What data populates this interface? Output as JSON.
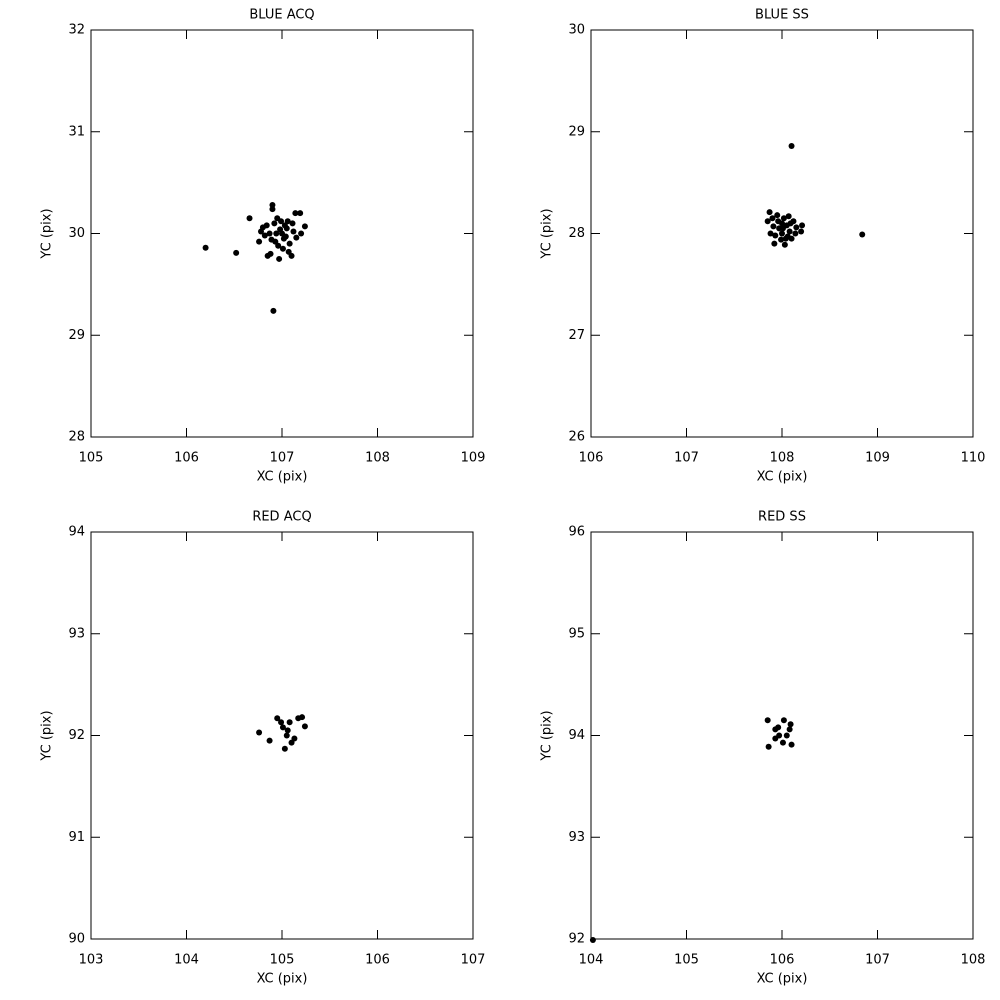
{
  "chart_data": [
    {
      "type": "scatter",
      "title": "BLUE ACQ",
      "xlabel": "XC (pix)",
      "ylabel": "YC (pix)",
      "color": "#000000",
      "x": [
        106.2,
        106.52,
        106.91,
        106.9,
        106.9,
        106.66,
        107.24,
        107.19,
        107.14,
        106.8,
        106.78,
        106.82,
        106.85,
        106.88,
        106.92,
        106.95,
        106.97,
        107.0,
        107.02,
        107.05,
        107.06,
        107.08,
        107.1,
        107.12,
        106.93,
        106.96,
        106.98,
        107.03,
        106.87,
        106.84,
        107.15,
        107.2,
        107.01,
        106.94,
        107.04,
        106.76,
        106.89,
        107.07,
        106.99,
        107.11
      ],
      "y": [
        29.86,
        29.81,
        29.24,
        30.28,
        30.24,
        30.15,
        30.07,
        30.2,
        30.2,
        30.06,
        30.02,
        29.98,
        29.78,
        29.8,
        30.1,
        30.15,
        29.75,
        30.0,
        29.95,
        30.05,
        30.12,
        29.9,
        29.78,
        30.02,
        29.92,
        29.88,
        30.04,
        30.08,
        30.0,
        30.08,
        29.96,
        30.0,
        29.85,
        30.0,
        29.97,
        29.92,
        29.94,
        29.82,
        30.12,
        30.1
      ],
      "xlim": [
        105,
        109
      ],
      "ylim": [
        28,
        32
      ],
      "xticks": [
        105,
        106,
        107,
        108,
        109
      ],
      "yticks": [
        28,
        29,
        30,
        31,
        32
      ]
    },
    {
      "type": "scatter",
      "title": "BLUE SS",
      "xlabel": "XC (pix)",
      "ylabel": "YC (pix)",
      "color": "#000000",
      "x": [
        108.1,
        108.84,
        107.87,
        108.21,
        108.2,
        107.92,
        108.03,
        107.85,
        107.88,
        107.9,
        107.95,
        107.97,
        108.0,
        108.0,
        108.02,
        108.04,
        108.05,
        108.07,
        108.08,
        108.1,
        108.12,
        108.14,
        107.93,
        107.96,
        107.99,
        108.01,
        108.06,
        108.09,
        107.91,
        108.15
      ],
      "y": [
        28.86,
        27.99,
        28.21,
        28.08,
        28.02,
        27.9,
        27.89,
        28.12,
        28.0,
        28.15,
        28.18,
        28.05,
        28.1,
        28.0,
        28.15,
        27.95,
        28.08,
        28.17,
        28.02,
        27.95,
        28.12,
        28.0,
        27.98,
        28.12,
        27.94,
        28.05,
        27.97,
        28.1,
        28.07,
        28.06
      ],
      "xlim": [
        106,
        110
      ],
      "ylim": [
        26,
        30
      ],
      "xticks": [
        106,
        107,
        108,
        109,
        110
      ],
      "yticks": [
        26,
        27,
        28,
        29,
        30
      ]
    },
    {
      "type": "scatter",
      "title": "RED ACQ",
      "xlabel": "XC (pix)",
      "ylabel": "YC (pix)",
      "color": "#000000",
      "x": [
        104.76,
        104.87,
        104.95,
        105.21,
        105.24,
        105.03,
        105.1,
        105.08,
        105.01,
        105.05,
        105.13,
        104.99,
        105.17,
        105.06
      ],
      "y": [
        92.03,
        91.95,
        92.17,
        92.18,
        92.09,
        91.87,
        91.93,
        92.13,
        92.08,
        92.0,
        91.97,
        92.13,
        92.17,
        92.05
      ],
      "xlim": [
        103,
        107
      ],
      "ylim": [
        90,
        94
      ],
      "xticks": [
        103,
        104,
        105,
        106,
        107
      ],
      "yticks": [
        90,
        91,
        92,
        93,
        94
      ]
    },
    {
      "type": "scatter",
      "title": "RED SS",
      "xlabel": "XC (pix)",
      "ylabel": "YC (pix)",
      "color": "#000000",
      "x": [
        105.85,
        105.86,
        106.1,
        106.02,
        105.93,
        106.08,
        105.97,
        106.05,
        106.01,
        105.93,
        106.09,
        105.96,
        104.02
      ],
      "y": [
        94.15,
        93.89,
        93.91,
        94.15,
        94.06,
        94.06,
        94.0,
        94.0,
        93.93,
        93.97,
        94.11,
        94.08,
        91.99
      ],
      "xlim": [
        104,
        108
      ],
      "ylim": [
        92,
        96
      ],
      "xticks": [
        104,
        105,
        106,
        107,
        108
      ],
      "yticks": [
        92,
        93,
        94,
        95,
        96
      ]
    }
  ]
}
